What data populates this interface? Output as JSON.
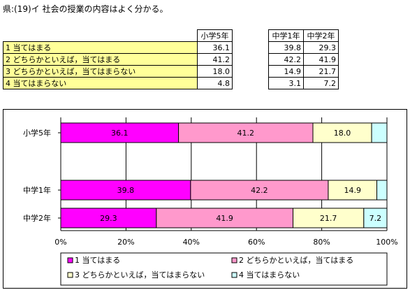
{
  "title": "県:(19)イ 社会の授業の内容はよく分かる。",
  "table": {
    "headers": [
      "小学5年",
      "中学1年",
      "中学2年"
    ],
    "rows": [
      {
        "label": "1 当てはまる",
        "values": [
          "36.1",
          "39.8",
          "29.3"
        ]
      },
      {
        "label": "2 どちらかといえば，当てはまる",
        "values": [
          "41.2",
          "42.2",
          "41.9"
        ]
      },
      {
        "label": "3 どちらかといえば，当てはまらない",
        "values": [
          "18.0",
          "14.9",
          "21.7"
        ]
      },
      {
        "label": "4 当てはまらない",
        "values": [
          "4.8",
          "3.1",
          "7.2"
        ]
      }
    ]
  },
  "chart_data": {
    "type": "bar",
    "orientation": "horizontal",
    "stacked": true,
    "categories": [
      "小学5年",
      "中学1年",
      "中学2年"
    ],
    "series": [
      {
        "name": "1 当てはまる",
        "values": [
          36.1,
          39.8,
          29.3
        ],
        "color": "#ff00ff"
      },
      {
        "name": "2 どちらかといえば，当てはまる",
        "values": [
          41.2,
          42.2,
          41.9
        ],
        "color": "#ff99cc"
      },
      {
        "name": "3 どちらかといえば，当てはまらない",
        "values": [
          18.0,
          14.9,
          21.7
        ],
        "color": "#ffffcc"
      },
      {
        "name": "4 当てはまらない",
        "values": [
          4.8,
          3.1,
          7.2
        ],
        "color": "#ccffff"
      }
    ],
    "data_labels": [
      [
        "36.1",
        "41.2",
        "18.0",
        ""
      ],
      [
        "39.8",
        "42.2",
        "14.9",
        ""
      ],
      [
        "29.3",
        "41.9",
        "21.7",
        "7.2"
      ]
    ],
    "x_ticks": [
      "0%",
      "20%",
      "40%",
      "60%",
      "80%",
      "100%"
    ],
    "xlim": [
      0,
      100
    ],
    "grid": true,
    "legend_position": "bottom"
  }
}
